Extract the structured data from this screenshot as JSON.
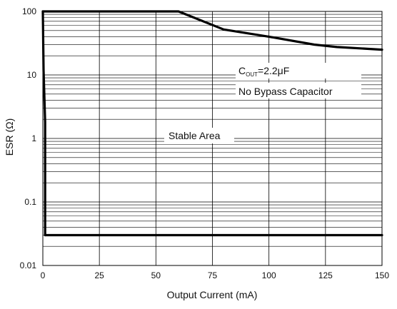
{
  "chart_data": {
    "type": "line",
    "xlabel": "Output Current (mA)",
    "ylabel": "ESR (Ω)",
    "xlim": [
      0,
      150
    ],
    "ylim": [
      0.01,
      100
    ],
    "yscale": "log",
    "grid": true,
    "xticks": [
      0,
      25,
      50,
      75,
      100,
      125,
      150
    ],
    "xtick_labels": [
      "0",
      "25",
      "50",
      "75",
      "100",
      "125",
      "150"
    ],
    "yticks": [
      0.01,
      0.1,
      1,
      10,
      100
    ],
    "ytick_labels": [
      "0.01",
      "0.1",
      "1",
      "10",
      "100"
    ],
    "series": [
      {
        "role": "upper-boundary",
        "points": [
          [
            0,
            100
          ],
          [
            60,
            100
          ],
          [
            80,
            52
          ],
          [
            100,
            40
          ],
          [
            120,
            30
          ],
          [
            130,
            27.5
          ],
          [
            150,
            25
          ]
        ]
      },
      {
        "role": "left-boundary",
        "points": [
          [
            0,
            100
          ],
          [
            0.3,
            12
          ],
          [
            1,
            1.8
          ],
          [
            1,
            0.03
          ]
        ]
      },
      {
        "role": "lower-boundary",
        "points": [
          [
            1,
            0.03
          ],
          [
            150,
            0.03
          ]
        ]
      }
    ],
    "annotations": {
      "cout_main": "C",
      "cout_sub": "OUT",
      "cout_value": "=2.2μF",
      "bypass": "No Bypass Capacitor",
      "stable": "Stable Area"
    },
    "colors": {
      "curve": "#000000",
      "grid": "#000000",
      "background": "#ffffff"
    }
  }
}
